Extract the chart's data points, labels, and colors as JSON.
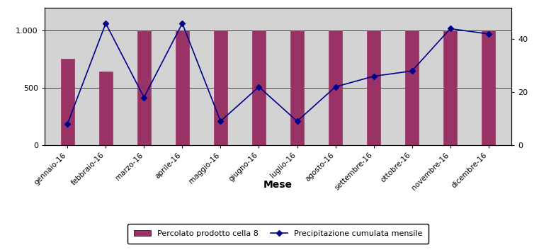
{
  "categories": [
    "gennaio-16",
    "febbraio-16",
    "marzo-16",
    "aprile-16",
    "maggio-16",
    "giugno-16",
    "luglio-16",
    "agosto-16",
    "settembre-16",
    "ottobre-16",
    "novembre-16",
    "dicembre-16"
  ],
  "bar_values": [
    750,
    640,
    1000,
    1000,
    1000,
    1000,
    1000,
    1000,
    1000,
    1000,
    1000,
    1000
  ],
  "line_values": [
    8,
    46,
    18,
    46,
    9,
    22,
    9,
    22,
    26,
    28,
    44,
    42
  ],
  "bar_color": "#993366",
  "line_color": "#00008B",
  "bar_ylim": [
    0,
    1200
  ],
  "line_ylim": [
    0,
    52
  ],
  "bar_yticks": [
    0,
    500,
    1000
  ],
  "line_yticks": [
    0,
    20,
    40
  ],
  "xlabel": "Mese",
  "xlabel_fontsize": 10,
  "legend_bar_label": "Percolato prodotto cella 8",
  "legend_line_label": "Precipitazione cumulata mensile",
  "background_color": "#d3d3d3",
  "fig_background": "#ffffff"
}
